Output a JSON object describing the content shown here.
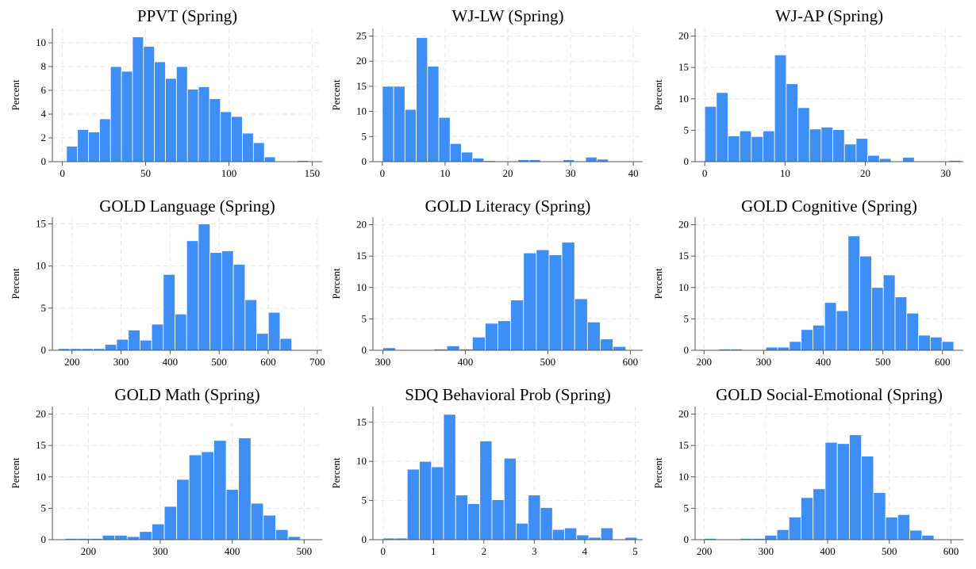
{
  "colors": {
    "bar": "#3d8ef5",
    "bar_edge": "#ffffff"
  },
  "chart_data": [
    {
      "type": "bar",
      "title": "PPVT (Spring)",
      "ylabel": "Percent",
      "xlabel": "",
      "xlim": [
        -6,
        156
      ],
      "ylim": [
        0,
        11.2
      ],
      "xticks": [
        0,
        50,
        100,
        150
      ],
      "yticks": [
        0,
        2,
        4,
        6,
        8,
        10
      ],
      "bin_start": 2.5,
      "bin_width": 6.6,
      "values": [
        1.3,
        2.7,
        2.5,
        3.6,
        8.0,
        7.6,
        10.5,
        9.7,
        8.4,
        7.0,
        8.0,
        6.1,
        6.3,
        5.3,
        4.2,
        3.8,
        2.4,
        1.6,
        0.4,
        0.0,
        0.0,
        0.1
      ]
    },
    {
      "type": "bar",
      "title": "WJ-LW (Spring)",
      "ylabel": "Percent",
      "xlabel": "",
      "xlim": [
        -1.5,
        41.5
      ],
      "ylim": [
        0,
        26.5
      ],
      "xticks": [
        0,
        10,
        20,
        30,
        40
      ],
      "yticks": [
        0,
        5,
        10,
        15,
        20,
        25
      ],
      "bin_start": 0,
      "bin_width": 1.8,
      "values": [
        15.0,
        15.0,
        10.4,
        24.7,
        19.0,
        8.8,
        3.6,
        1.9,
        0.7,
        0.2,
        0.0,
        0.0,
        0.4,
        0.4,
        0.0,
        0.0,
        0.4,
        0.0,
        0.9,
        0.5,
        0.0,
        0.0
      ]
    },
    {
      "type": "bar",
      "title": "WJ-AP (Spring)",
      "ylabel": "Percent",
      "xlabel": "",
      "xlim": [
        -1.2,
        32.2
      ],
      "ylim": [
        0,
        21.2
      ],
      "xticks": [
        0,
        10,
        20,
        30
      ],
      "yticks": [
        0,
        5,
        10,
        15,
        20
      ],
      "bin_start": 0,
      "bin_width": 1.45,
      "values": [
        8.8,
        11.0,
        4.1,
        4.9,
        4.0,
        4.9,
        17.0,
        12.4,
        8.6,
        5.2,
        5.5,
        5.1,
        2.8,
        3.7,
        1.0,
        0.5,
        0.0,
        0.7,
        0.0,
        0.0,
        0.0,
        0.2
      ]
    },
    {
      "type": "bar",
      "title": "GOLD Language (Spring)",
      "ylabel": "Percent",
      "xlabel": "",
      "xlim": [
        160,
        710
      ],
      "ylim": [
        0,
        15.8
      ],
      "xticks": [
        200,
        300,
        400,
        500,
        600,
        700
      ],
      "yticks": [
        0,
        5,
        10,
        15
      ],
      "bin_start": 172,
      "bin_width": 23.8,
      "values": [
        0.2,
        0.2,
        0.2,
        0.2,
        0.7,
        1.3,
        2.4,
        1.2,
        3.1,
        9.0,
        4.3,
        13.0,
        15.0,
        11.6,
        11.8,
        10.2,
        6.0,
        2.0,
        4.5,
        1.4
      ]
    },
    {
      "type": "bar",
      "title": "GOLD Literacy (Spring)",
      "ylabel": "Percent",
      "xlabel": "",
      "xlim": [
        288,
        615
      ],
      "ylim": [
        0,
        21.2
      ],
      "xticks": [
        300,
        400,
        500,
        600
      ],
      "yticks": [
        0,
        5,
        10,
        15,
        20
      ],
      "bin_start": 300,
      "bin_width": 15.5,
      "values": [
        0.4,
        0.0,
        0.0,
        0.0,
        0.2,
        0.7,
        0.2,
        2.1,
        4.3,
        4.7,
        8.0,
        15.5,
        16.0,
        15.2,
        17.2,
        8.2,
        4.5,
        1.8,
        0.6,
        0.0
      ]
    },
    {
      "type": "bar",
      "title": "GOLD Cognitive (Spring)",
      "ylabel": "Percent",
      "xlabel": "",
      "xlim": [
        185,
        635
      ],
      "ylim": [
        0,
        21.2
      ],
      "xticks": [
        200,
        300,
        400,
        500,
        600
      ],
      "yticks": [
        0,
        5,
        10,
        15,
        20
      ],
      "bin_start": 225,
      "bin_width": 19.7,
      "values": [
        0.2,
        0.2,
        0.0,
        0.0,
        0.5,
        0.5,
        1.4,
        3.3,
        4.0,
        7.6,
        6.3,
        18.2,
        15.0,
        10.0,
        12.0,
        8.5,
        5.9,
        2.4,
        2.1,
        1.4
      ]
    },
    {
      "type": "bar",
      "title": "GOLD Math (Spring)",
      "ylabel": "Percent",
      "xlabel": "",
      "xlim": [
        150,
        525
      ],
      "ylim": [
        0,
        21.2
      ],
      "xticks": [
        200,
        300,
        400,
        500
      ],
      "yticks": [
        0,
        5,
        10,
        15,
        20
      ],
      "bin_start": 168,
      "bin_width": 17.2,
      "values": [
        0.2,
        0.2,
        0.2,
        0.7,
        0.7,
        0.5,
        1.3,
        2.5,
        5.3,
        9.6,
        13.5,
        14.0,
        15.8,
        8.0,
        16.2,
        5.8,
        3.9,
        1.6,
        0.5
      ]
    },
    {
      "type": "bar",
      "title": "SDQ Behavioral Prob (Spring)",
      "ylabel": "Percent",
      "xlabel": "",
      "xlim": [
        -0.2,
        5.15
      ],
      "ylim": [
        0,
        17.0
      ],
      "xticks": [
        0,
        1,
        2,
        3,
        4,
        5
      ],
      "yticks": [
        0,
        5,
        10,
        15
      ],
      "bin_start": 0,
      "bin_width": 0.24,
      "values": [
        0.2,
        0.2,
        9.0,
        10.0,
        9.3,
        16.0,
        5.7,
        4.6,
        12.6,
        5.1,
        10.4,
        2.1,
        5.7,
        4.1,
        1.3,
        1.5,
        0.6,
        0.3,
        1.5,
        0.0,
        0.3
      ]
    },
    {
      "type": "bar",
      "title": "GOLD Social-Emotional (Spring)",
      "ylabel": "Percent",
      "xlabel": "",
      "xlim": [
        185,
        620
      ],
      "ylim": [
        0,
        21.2
      ],
      "xticks": [
        200,
        300,
        400,
        500,
        600
      ],
      "yticks": [
        0,
        5,
        10,
        15,
        20
      ],
      "bin_start": 200,
      "bin_width": 19.6,
      "values": [
        0.2,
        0.0,
        0.0,
        0.2,
        0.2,
        0.7,
        1.6,
        3.6,
        6.7,
        8.1,
        15.5,
        15.3,
        16.7,
        13.3,
        7.5,
        3.6,
        4.0,
        1.5,
        0.7,
        0.0
      ]
    }
  ]
}
